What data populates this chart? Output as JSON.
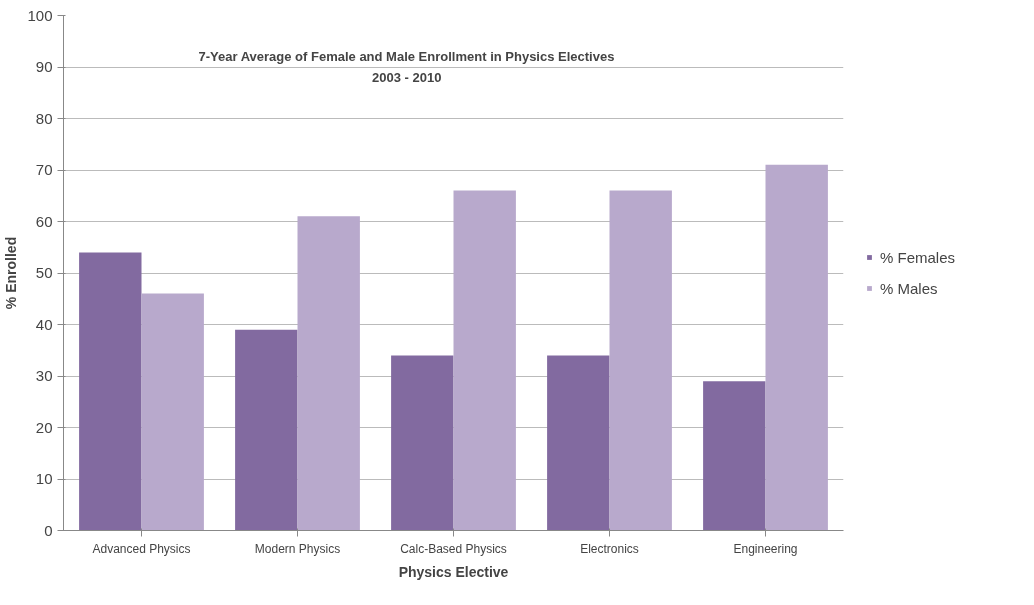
{
  "chart_data": {
    "type": "bar",
    "title": "7-Year Average of Female and Male Enrollment in Physics Electives",
    "subtitle": "2003 - 2010",
    "xlabel": "Physics Elective",
    "ylabel": "% Enrolled",
    "categories": [
      "Advanced Physics",
      "Modern Physics",
      "Calc-Based Physics",
      "Electronics",
      "Engineering"
    ],
    "series": [
      {
        "name": "% Females",
        "color": "#826aa0",
        "values": [
          54,
          39,
          34,
          34,
          29
        ]
      },
      {
        "name": "% Males",
        "color": "#b8a9cc",
        "values": [
          46,
          61,
          66,
          66,
          71
        ]
      }
    ],
    "ylim": [
      0,
      100
    ],
    "yticks": [
      0,
      10,
      20,
      30,
      40,
      50,
      60,
      70,
      80,
      90,
      100
    ],
    "grid": "y",
    "legend": "right"
  }
}
